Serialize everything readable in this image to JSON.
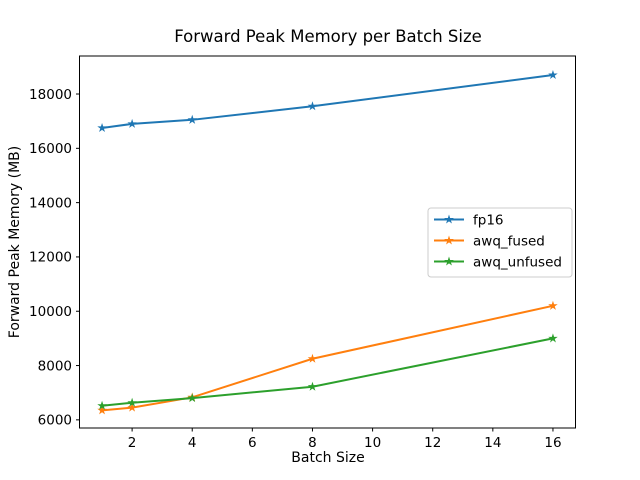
{
  "chart_data": {
    "type": "line",
    "title": "Forward Peak Memory per Batch Size",
    "xlabel": "Batch Size",
    "ylabel": "Forward Peak Memory (MB)",
    "x": [
      1,
      2,
      4,
      8,
      16
    ],
    "series": [
      {
        "name": "fp16",
        "color": "#1f77b4",
        "marker": "star",
        "values": [
          16750,
          16900,
          17050,
          17550,
          18700
        ]
      },
      {
        "name": "awq_fused",
        "color": "#ff7f0e",
        "marker": "star",
        "values": [
          6350,
          6450,
          6830,
          8250,
          10200
        ]
      },
      {
        "name": "awq_unfused",
        "color": "#2ca02c",
        "marker": "star",
        "values": [
          6520,
          6630,
          6800,
          7220,
          9000
        ]
      }
    ],
    "xticks": [
      2,
      4,
      6,
      8,
      10,
      12,
      14,
      16
    ],
    "yticks": [
      6000,
      8000,
      10000,
      12000,
      14000,
      16000,
      18000
    ],
    "xlim": [
      0.25,
      16.75
    ],
    "ylim": [
      5700,
      19400
    ],
    "grid": false,
    "legend_position": "center right",
    "axis_color": "#000000",
    "legend_border_color": "#cccccc",
    "background_color": "#ffffff"
  }
}
